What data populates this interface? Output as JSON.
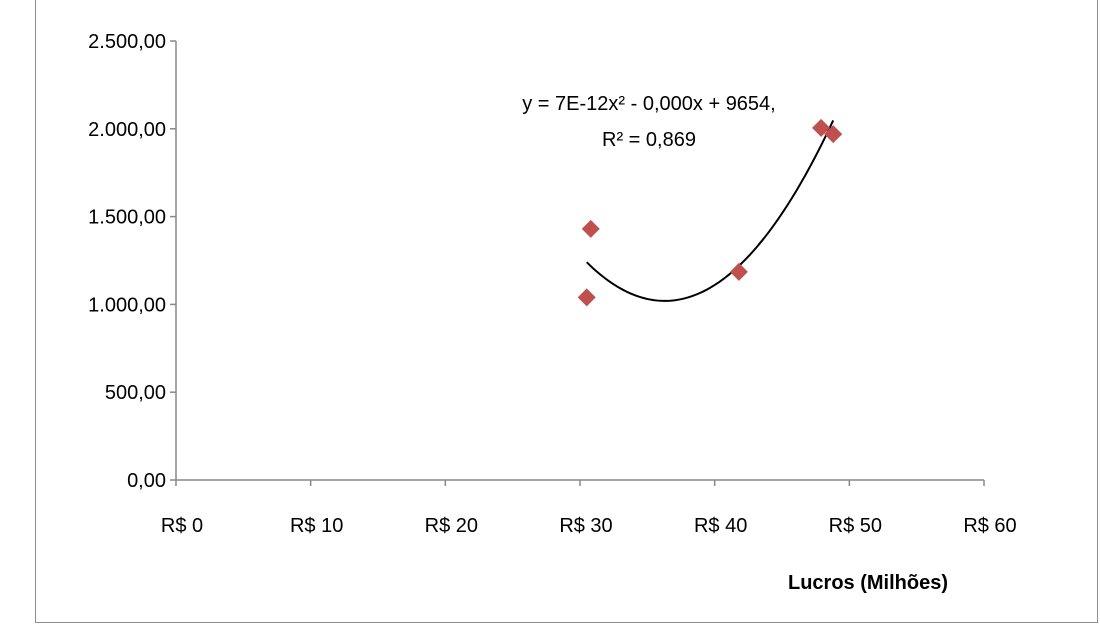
{
  "chart_data": {
    "type": "scatter",
    "xlabel": "Lucros (Milhões)",
    "ylabel": "",
    "xlim": [
      0,
      60
    ],
    "ylim": [
      0,
      2500
    ],
    "x_ticks": [
      0,
      10,
      20,
      30,
      40,
      50,
      60
    ],
    "x_tick_labels": [
      "R$ 0",
      "R$ 10",
      "R$ 20",
      "R$ 30",
      "R$ 40",
      "R$ 50",
      "R$ 60"
    ],
    "y_ticks": [
      0,
      500,
      1000,
      1500,
      2000,
      2500
    ],
    "y_tick_labels": [
      "0,00",
      "500,00",
      "1.000,00",
      "1.500,00",
      "2.000,00",
      "2.500,00"
    ],
    "grid": false,
    "marker_color": "#c0504d",
    "points": [
      {
        "x": 30.5,
        "y": 1040
      },
      {
        "x": 30.8,
        "y": 1430
      },
      {
        "x": 41.8,
        "y": 1185
      },
      {
        "x": 47.9,
        "y": 2005
      },
      {
        "x": 48.8,
        "y": 1970
      }
    ],
    "trendline": {
      "type": "polynomial",
      "order": 2,
      "x_range": [
        30.5,
        48.8
      ],
      "color": "#000000",
      "equation_line1": "y = 7E-12x² - 0,000x + 9654,",
      "equation_line2": "R² = 0,869"
    }
  }
}
